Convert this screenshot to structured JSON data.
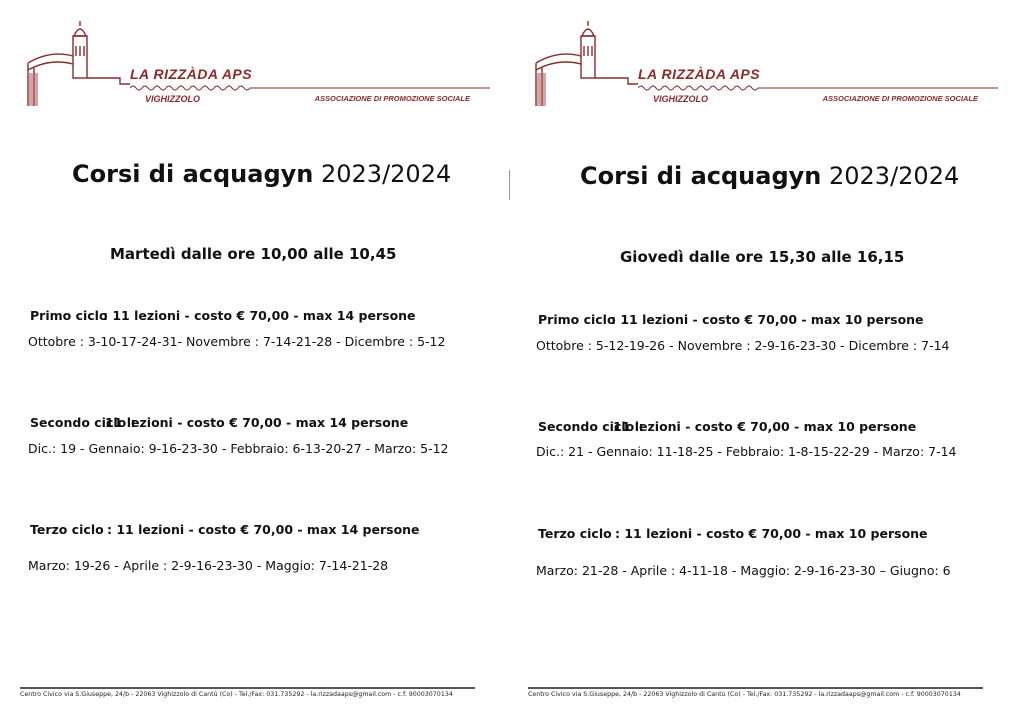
{
  "header": {
    "org": "LA RIZZÀDA APS",
    "town": "VIGHIZZOLO",
    "tagline": "ASSOCIAZIONE DI PROMOZIONE SOCIALE"
  },
  "footer": "Centro Civico via S.Giuseppe, 24/b - 22063 Vighizzolo di Cantù (Co) - Tel./Fax: 031.735292 - la.rizzadaaps@gmail.com - c.f. 90003070134",
  "pages": [
    {
      "title_bold": "Corsi di acquagyn",
      "title_year": "2023/2024",
      "schedule": "Martedì dalle ore 10,00 alle 10,45",
      "cycles": [
        {
          "name": "Primo ciclo",
          "info": ": 11 lezioni - costo € 70,00  - max 14 persone",
          "dates": "Ottobre : 3-10-17-24-31- Novembre : 7-14-21-28 - Dicembre : 5-12"
        },
        {
          "name": "Secondo ciclo :",
          "info": "11 lezioni - costo € 70,00  - max 14 persone",
          "dates": "Dic.: 19 - Gennaio: 9-16-23-30 - Febbraio: 6-13-20-27 - Marzo: 5-12"
        },
        {
          "name": "Terzo ciclo",
          "info": ": 11 lezioni - costo € 70,00  - max 14 persone",
          "dates": "Marzo: 19-26 - Aprile : 2-9-16-23-30 - Maggio: 7-14-21-28"
        }
      ]
    },
    {
      "title_bold": "Corsi di acquagyn",
      "title_year": "2023/2024",
      "schedule": "Giovedì dalle ore 15,30 alle 16,15",
      "cycles": [
        {
          "name": "Primo ciclo",
          "info": ": 11 lezioni - costo € 70,00  - max 10 persone",
          "dates": "Ottobre : 5-12-19-26 - Novembre : 2-9-16-23-30 - Dicembre : 7-14"
        },
        {
          "name": "Secondo ciclo :",
          "info": "11 lezioni - costo € 70,00  - max 10 persone",
          "dates": "Dic.: 21 - Gennaio: 11-18-25 - Febbraio: 1-8-15-22-29 - Marzo: 7-14"
        },
        {
          "name": "Terzo ciclo",
          "info": ": 11 lezioni - costo € 70,00  - max 10 persone",
          "dates": "Marzo: 21-28 - Aprile : 4-11-18 - Maggio: 2-9-16-23-30 – Giugno: 6"
        }
      ]
    }
  ]
}
